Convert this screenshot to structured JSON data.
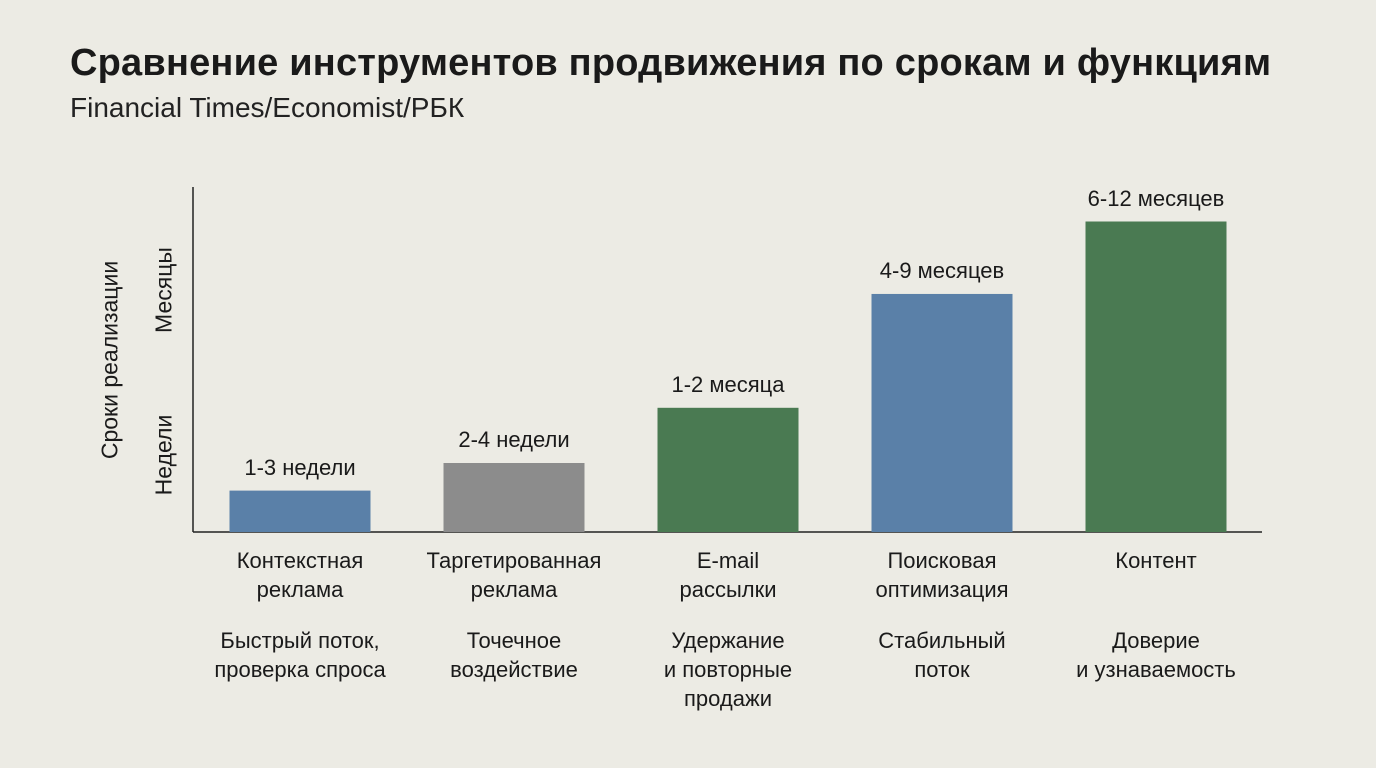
{
  "chart_data": {
    "type": "bar",
    "title": "Сравнение инструментов продвижения по срокам и функциям",
    "subtitle": "Financial Times/Economist/РБК",
    "ylabel": "Сроки реализации",
    "yticks": [
      "Недели",
      "Месяцы"
    ],
    "categories": [
      {
        "name_lines": [
          "Контекстная",
          "реклама"
        ],
        "function_lines": [
          "Быстрый поток,",
          "проверка спроса"
        ],
        "value_label": "1-3 недели",
        "value": 0.12,
        "color": "#5a80a8"
      },
      {
        "name_lines": [
          "Таргетированная",
          "реклама"
        ],
        "function_lines": [
          "Точечное",
          "воздействие"
        ],
        "value_label": "2-4 недели",
        "value": 0.2,
        "color": "#8c8c8c"
      },
      {
        "name_lines": [
          "E-mail",
          "рассылки"
        ],
        "function_lines": [
          "Удержание",
          "и повторные",
          "продажи"
        ],
        "value_label": "1-2 месяца",
        "value": 0.36,
        "color": "#4a7a52"
      },
      {
        "name_lines": [
          "Поисковая",
          "оптимизация"
        ],
        "function_lines": [
          "Стабильный",
          "поток"
        ],
        "value_label": "4-9 месяцев",
        "value": 0.69,
        "color": "#5a80a8"
      },
      {
        "name_lines": [
          "Контент"
        ],
        "function_lines": [
          "Доверие",
          "и узнаваемость"
        ],
        "value_label": "6-12 месяцев",
        "value": 0.9,
        "color": "#4a7a52"
      }
    ]
  }
}
